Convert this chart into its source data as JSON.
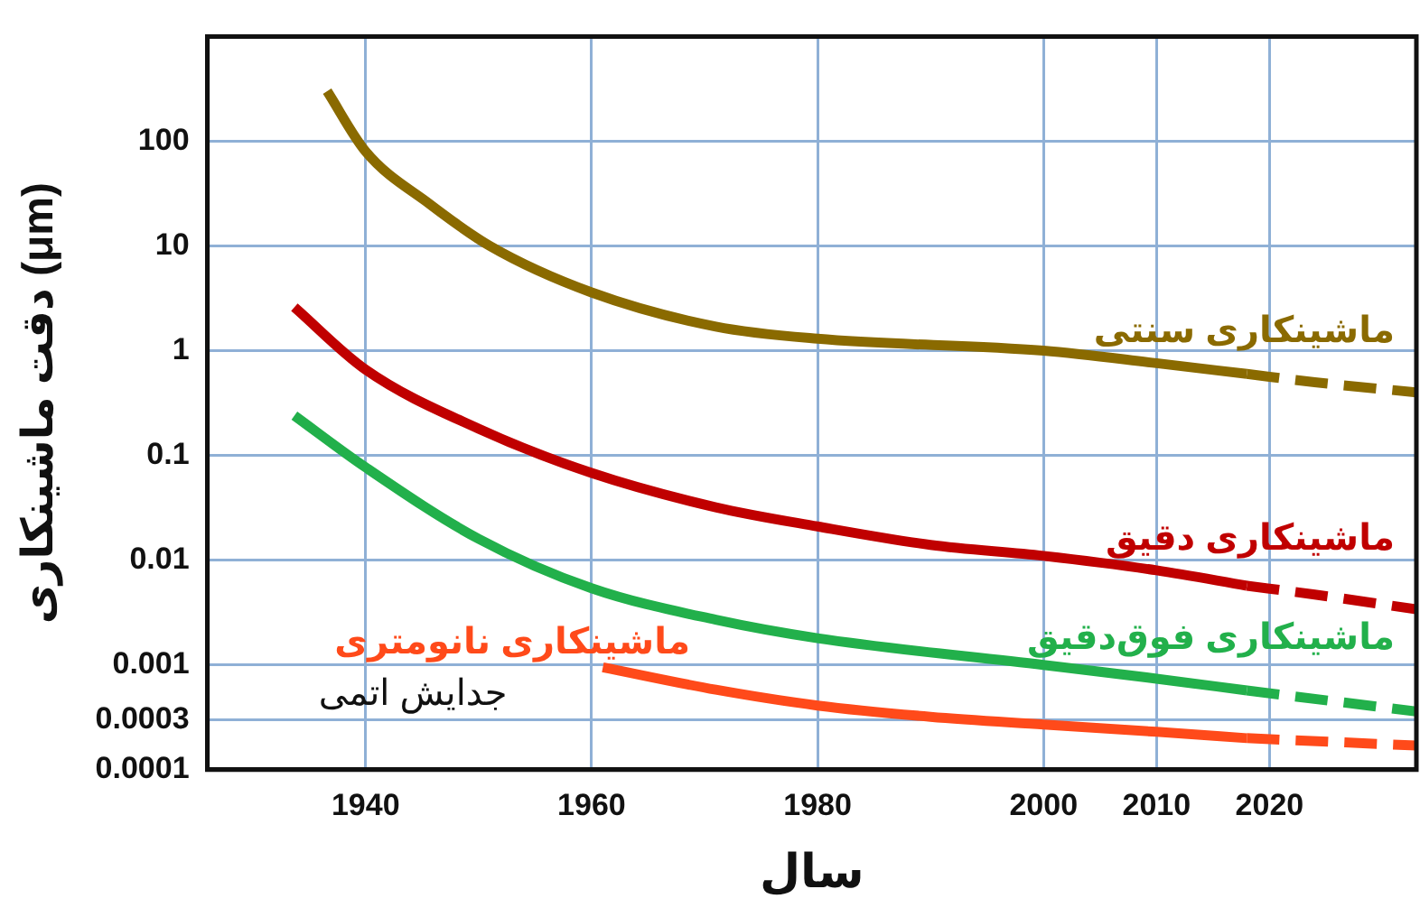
{
  "chart_data": {
    "type": "line",
    "xlabel": "سال",
    "ylabel": "دقت ماشینکاری (μm)",
    "log": "y",
    "grid": true,
    "legend": false,
    "marker": "none",
    "xlim": [
      1926,
      2033
    ],
    "xticks": [
      1940,
      1960,
      1980,
      2000,
      2010,
      2020
    ],
    "ylim": [
      0.0001,
      1000
    ],
    "yticks": [
      100,
      10,
      1,
      0.1,
      0.01,
      0.001,
      0.0003,
      0.0001
    ],
    "annotations": [
      "جدایش اتمی"
    ],
    "series": [
      {
        "name": "ماشینکاری سنتی",
        "color": "#8a6a00",
        "line_style": "solid",
        "x": [
          1936.6,
          1940,
          1945.7,
          1951,
          1960,
          1971,
          1980,
          2000,
          2010,
          2018
        ],
        "values": [
          300,
          80,
          25,
          10,
          3.6,
          1.7,
          1.3,
          1.0,
          0.76,
          0.6
        ]
      },
      {
        "color": "#8a6a00",
        "line_style": "dashed",
        "x": [
          2018,
          2024,
          2033
        ],
        "values": [
          0.6,
          0.5,
          0.4
        ]
      },
      {
        "name": "ماشینکاری دقیق",
        "color": "#c00000",
        "line_style": "solid",
        "x": [
          1933.7,
          1940,
          1950,
          1960,
          1971,
          1980,
          1990,
          2000,
          2010,
          2018
        ],
        "values": [
          2.6,
          0.66,
          0.18,
          0.068,
          0.032,
          0.021,
          0.014,
          0.011,
          0.008,
          0.0057
        ]
      },
      {
        "color": "#c00000",
        "line_style": "dashed",
        "x": [
          2018,
          2024,
          2033
        ],
        "values": [
          0.0057,
          0.0047,
          0.0034
        ]
      },
      {
        "name": "ماشینکاری فوق‌دقیق",
        "color": "#22b04b",
        "line_style": "solid",
        "x": [
          1933.7,
          1940,
          1950,
          1960,
          1971,
          1980,
          2000,
          2010,
          2018
        ],
        "values": [
          0.24,
          0.077,
          0.016,
          0.0054,
          0.0027,
          0.0018,
          0.001,
          0.00074,
          0.00057
        ]
      },
      {
        "color": "#22b04b",
        "line_style": "dashed",
        "x": [
          2018,
          2033
        ],
        "values": [
          0.00057,
          0.00036
        ]
      },
      {
        "name": "ماشینکاری نانومتری",
        "color": "#ff4a1a",
        "line_style": "solid",
        "x": [
          1961,
          1971,
          1980,
          1990,
          2000,
          2010,
          2018
        ],
        "values": [
          0.00095,
          0.00058,
          0.00041,
          0.00032,
          0.00027,
          0.00023,
          0.0002
        ]
      },
      {
        "color": "#ff4a1a",
        "line_style": "dashed",
        "x": [
          2018,
          2033
        ],
        "values": [
          0.0002,
          0.00017
        ]
      }
    ]
  }
}
